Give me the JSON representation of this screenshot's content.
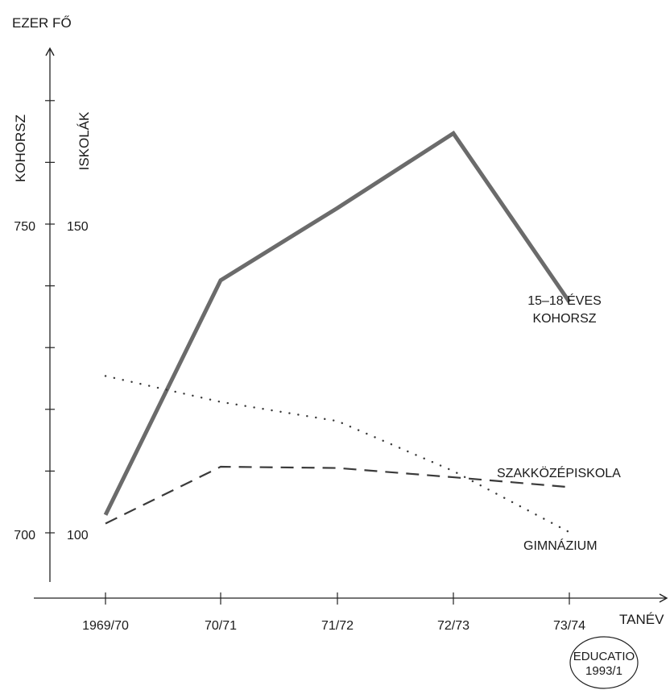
{
  "chart_data": {
    "type": "line",
    "title": "",
    "unit_label": "EZER FŐ",
    "left_axis_label": "KOHORSZ",
    "right_axis_label": "ISKOLÁK",
    "xlabel": "TANÉV",
    "categories": [
      "1969/70",
      "70/71",
      "71/72",
      "72/73",
      "73/74"
    ],
    "y_left": {
      "ticks": [
        700,
        750
      ],
      "range": [
        700,
        750
      ]
    },
    "y_right": {
      "ticks": [
        100,
        150
      ],
      "range": [
        100,
        150
      ]
    },
    "series": [
      {
        "name": "15–18 ÉVES KOHORSZ",
        "axis": "left",
        "style": "solid",
        "values": [
          702.9,
          740.9,
          752.6,
          764.7,
          737.4
        ]
      },
      {
        "name": "SZAKKÖZÉPISKOLA",
        "axis": "right",
        "style": "dashed",
        "values": [
          101.5,
          110.7,
          110.5,
          109.0,
          107.4
        ]
      },
      {
        "name": "GIMNÁZIUM",
        "axis": "right",
        "style": "dotted",
        "values": [
          125.4,
          121.2,
          118.1,
          110.0,
          100.1
        ]
      }
    ],
    "series_label_lines": {
      "kohorsz": [
        "15–18 ÉVES",
        "KOHORSZ"
      ],
      "szakkozep": [
        "SZAKKÖZÉPISKOLA"
      ],
      "gimnazium": [
        "GIMNÁZIUM"
      ]
    },
    "badge": {
      "line1": "EDUCATIO",
      "line2": "1993/1"
    },
    "colors": {
      "kohorsz_line": "#6b6b6b",
      "axes": "#222222",
      "text": "#1a1a1a"
    }
  }
}
